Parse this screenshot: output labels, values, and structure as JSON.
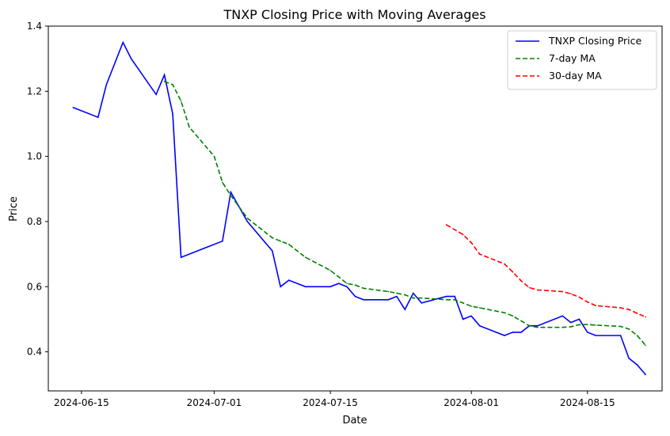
{
  "chart_data": {
    "type": "line",
    "title": "TNXP Closing Price with Moving Averages",
    "xlabel": "Date",
    "ylabel": "Price",
    "x_ticks": [
      "2024-06-15",
      "2024-07-01",
      "2024-07-15",
      "2024-08-01",
      "2024-08-15"
    ],
    "y_ticks": [
      "0.4",
      "0.6",
      "0.8",
      "1.0",
      "1.2",
      "1.4"
    ],
    "xlim": [
      "2024-06-11",
      "2024-08-24"
    ],
    "ylim": [
      0.28,
      1.4
    ],
    "grid": false,
    "legend_position": "top-right",
    "series": [
      {
        "name": "TNXP Closing Price",
        "color": "#0000ff",
        "style": "solid",
        "points": [
          [
            "2024-06-14",
            1.15
          ],
          [
            "2024-06-17",
            1.12
          ],
          [
            "2024-06-18",
            1.22
          ],
          [
            "2024-06-20",
            1.35
          ],
          [
            "2024-06-21",
            1.3
          ],
          [
            "2024-06-24",
            1.19
          ],
          [
            "2024-06-25",
            1.25
          ],
          [
            "2024-06-26",
            1.13
          ],
          [
            "2024-06-27",
            0.69
          ],
          [
            "2024-07-02",
            0.74
          ],
          [
            "2024-07-03",
            0.89
          ],
          [
            "2024-07-05",
            0.8
          ],
          [
            "2024-07-08",
            0.71
          ],
          [
            "2024-07-09",
            0.6
          ],
          [
            "2024-07-10",
            0.62
          ],
          [
            "2024-07-12",
            0.6
          ],
          [
            "2024-07-15",
            0.6
          ],
          [
            "2024-07-16",
            0.61
          ],
          [
            "2024-07-17",
            0.6
          ],
          [
            "2024-07-18",
            0.57
          ],
          [
            "2024-07-19",
            0.56
          ],
          [
            "2024-07-22",
            0.56
          ],
          [
            "2024-07-23",
            0.57
          ],
          [
            "2024-07-24",
            0.53
          ],
          [
            "2024-07-25",
            0.58
          ],
          [
            "2024-07-26",
            0.55
          ],
          [
            "2024-07-29",
            0.57
          ],
          [
            "2024-07-30",
            0.57
          ],
          [
            "2024-07-31",
            0.5
          ],
          [
            "2024-08-01",
            0.51
          ],
          [
            "2024-08-02",
            0.48
          ],
          [
            "2024-08-05",
            0.45
          ],
          [
            "2024-08-06",
            0.46
          ],
          [
            "2024-08-07",
            0.46
          ],
          [
            "2024-08-08",
            0.48
          ],
          [
            "2024-08-09",
            0.48
          ],
          [
            "2024-08-12",
            0.51
          ],
          [
            "2024-08-13",
            0.49
          ],
          [
            "2024-08-14",
            0.5
          ],
          [
            "2024-08-15",
            0.46
          ],
          [
            "2024-08-16",
            0.45
          ],
          [
            "2024-08-19",
            0.45
          ],
          [
            "2024-08-20",
            0.38
          ],
          [
            "2024-08-21",
            0.36
          ],
          [
            "2024-08-22",
            0.33
          ]
        ]
      },
      {
        "name": "7-day MA",
        "color": "#008000",
        "style": "dashed",
        "points": [
          [
            "2024-06-25",
            1.23
          ],
          [
            "2024-06-26",
            1.22
          ],
          [
            "2024-06-27",
            1.17
          ],
          [
            "2024-06-28",
            1.09
          ],
          [
            "2024-07-01",
            1.0
          ],
          [
            "2024-07-02",
            0.92
          ],
          [
            "2024-07-03",
            0.88
          ],
          [
            "2024-07-05",
            0.81
          ],
          [
            "2024-07-08",
            0.75
          ],
          [
            "2024-07-09",
            0.74
          ],
          [
            "2024-07-10",
            0.73
          ],
          [
            "2024-07-12",
            0.69
          ],
          [
            "2024-07-15",
            0.65
          ],
          [
            "2024-07-16",
            0.63
          ],
          [
            "2024-07-17",
            0.61
          ],
          [
            "2024-07-18",
            0.605
          ],
          [
            "2024-07-19",
            0.595
          ],
          [
            "2024-07-22",
            0.585
          ],
          [
            "2024-07-23",
            0.58
          ],
          [
            "2024-07-24",
            0.575
          ],
          [
            "2024-07-25",
            0.565
          ],
          [
            "2024-07-26",
            0.565
          ],
          [
            "2024-07-29",
            0.56
          ],
          [
            "2024-07-30",
            0.56
          ],
          [
            "2024-07-31",
            0.55
          ],
          [
            "2024-08-01",
            0.54
          ],
          [
            "2024-08-02",
            0.535
          ],
          [
            "2024-08-05",
            0.52
          ],
          [
            "2024-08-06",
            0.51
          ],
          [
            "2024-08-07",
            0.495
          ],
          [
            "2024-08-08",
            0.48
          ],
          [
            "2024-08-09",
            0.475
          ],
          [
            "2024-08-12",
            0.475
          ],
          [
            "2024-08-13",
            0.477
          ],
          [
            "2024-08-14",
            0.483
          ],
          [
            "2024-08-15",
            0.484
          ],
          [
            "2024-08-16",
            0.482
          ],
          [
            "2024-08-19",
            0.478
          ],
          [
            "2024-08-20",
            0.47
          ],
          [
            "2024-08-21",
            0.45
          ],
          [
            "2024-08-22",
            0.42
          ]
        ]
      },
      {
        "name": "30-day MA",
        "color": "#ff0000",
        "style": "dashed",
        "points": [
          [
            "2024-07-29",
            0.79
          ],
          [
            "2024-07-31",
            0.76
          ],
          [
            "2024-08-01",
            0.735
          ],
          [
            "2024-08-02",
            0.7
          ],
          [
            "2024-08-05",
            0.67
          ],
          [
            "2024-08-06",
            0.645
          ],
          [
            "2024-08-07",
            0.618
          ],
          [
            "2024-08-08",
            0.597
          ],
          [
            "2024-08-09",
            0.59
          ],
          [
            "2024-08-12",
            0.585
          ],
          [
            "2024-08-13",
            0.578
          ],
          [
            "2024-08-14",
            0.568
          ],
          [
            "2024-08-15",
            0.553
          ],
          [
            "2024-08-16",
            0.542
          ],
          [
            "2024-08-19",
            0.535
          ],
          [
            "2024-08-20",
            0.53
          ],
          [
            "2024-08-21",
            0.518
          ],
          [
            "2024-08-22",
            0.507
          ]
        ]
      }
    ]
  }
}
